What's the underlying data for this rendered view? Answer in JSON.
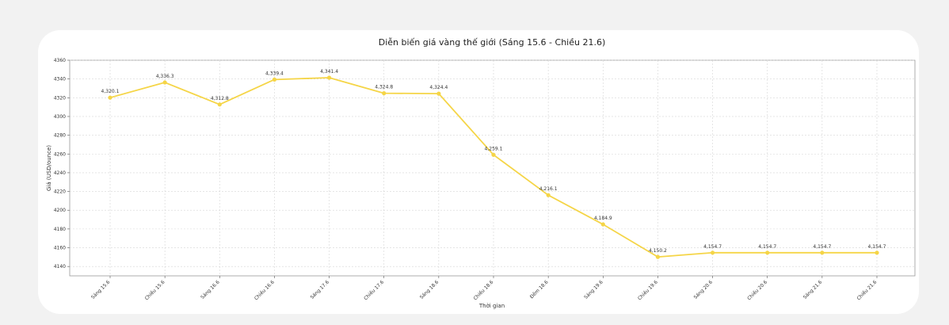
{
  "chart_data": {
    "type": "line",
    "title": "Diễn biến giá vàng thế giới (Sáng 15.6 - Chiều 21.6)",
    "xlabel": "Thời gian",
    "ylabel": "Giá (USD/ounce)",
    "ylim": [
      4130,
      4360
    ],
    "yticks": [
      "4140",
      "4160",
      "4180",
      "4200",
      "4220",
      "4240",
      "4260",
      "4280",
      "4300",
      "4320",
      "4340",
      "4360"
    ],
    "categories": [
      "Sáng 15.6",
      "Chiều 15.6",
      "Sáng 16.6",
      "Chiều 16.6",
      "Sáng 17.6",
      "Chiều 17.6",
      "Sáng 18.6",
      "Chiều 18.6",
      "Đêm 18.6",
      "Sáng 19.6",
      "Chiều 19.6",
      "Sáng 20.6",
      "Chiều 20.6",
      "Sáng 21.6",
      "Chiều 21.6"
    ],
    "values": [
      4320.1,
      4336.3,
      4312.8,
      4339.4,
      4341.4,
      4324.8,
      4324.4,
      4259.1,
      4216.1,
      4184.9,
      4150.2,
      4154.7,
      4154.7,
      4154.7,
      4154.7
    ],
    "data_labels": [
      "4,320.1",
      "4,336.3",
      "4,312.8",
      "4,339.4",
      "4,341.4",
      "4,324.8",
      "4,324.4",
      "4,259.1",
      "4,216.1",
      "4,184.9",
      "4,150.2",
      "4,154.7",
      "4,154.7",
      "4,154.7",
      "4,154.7"
    ],
    "line_color": "#f5d547",
    "grid": true
  }
}
